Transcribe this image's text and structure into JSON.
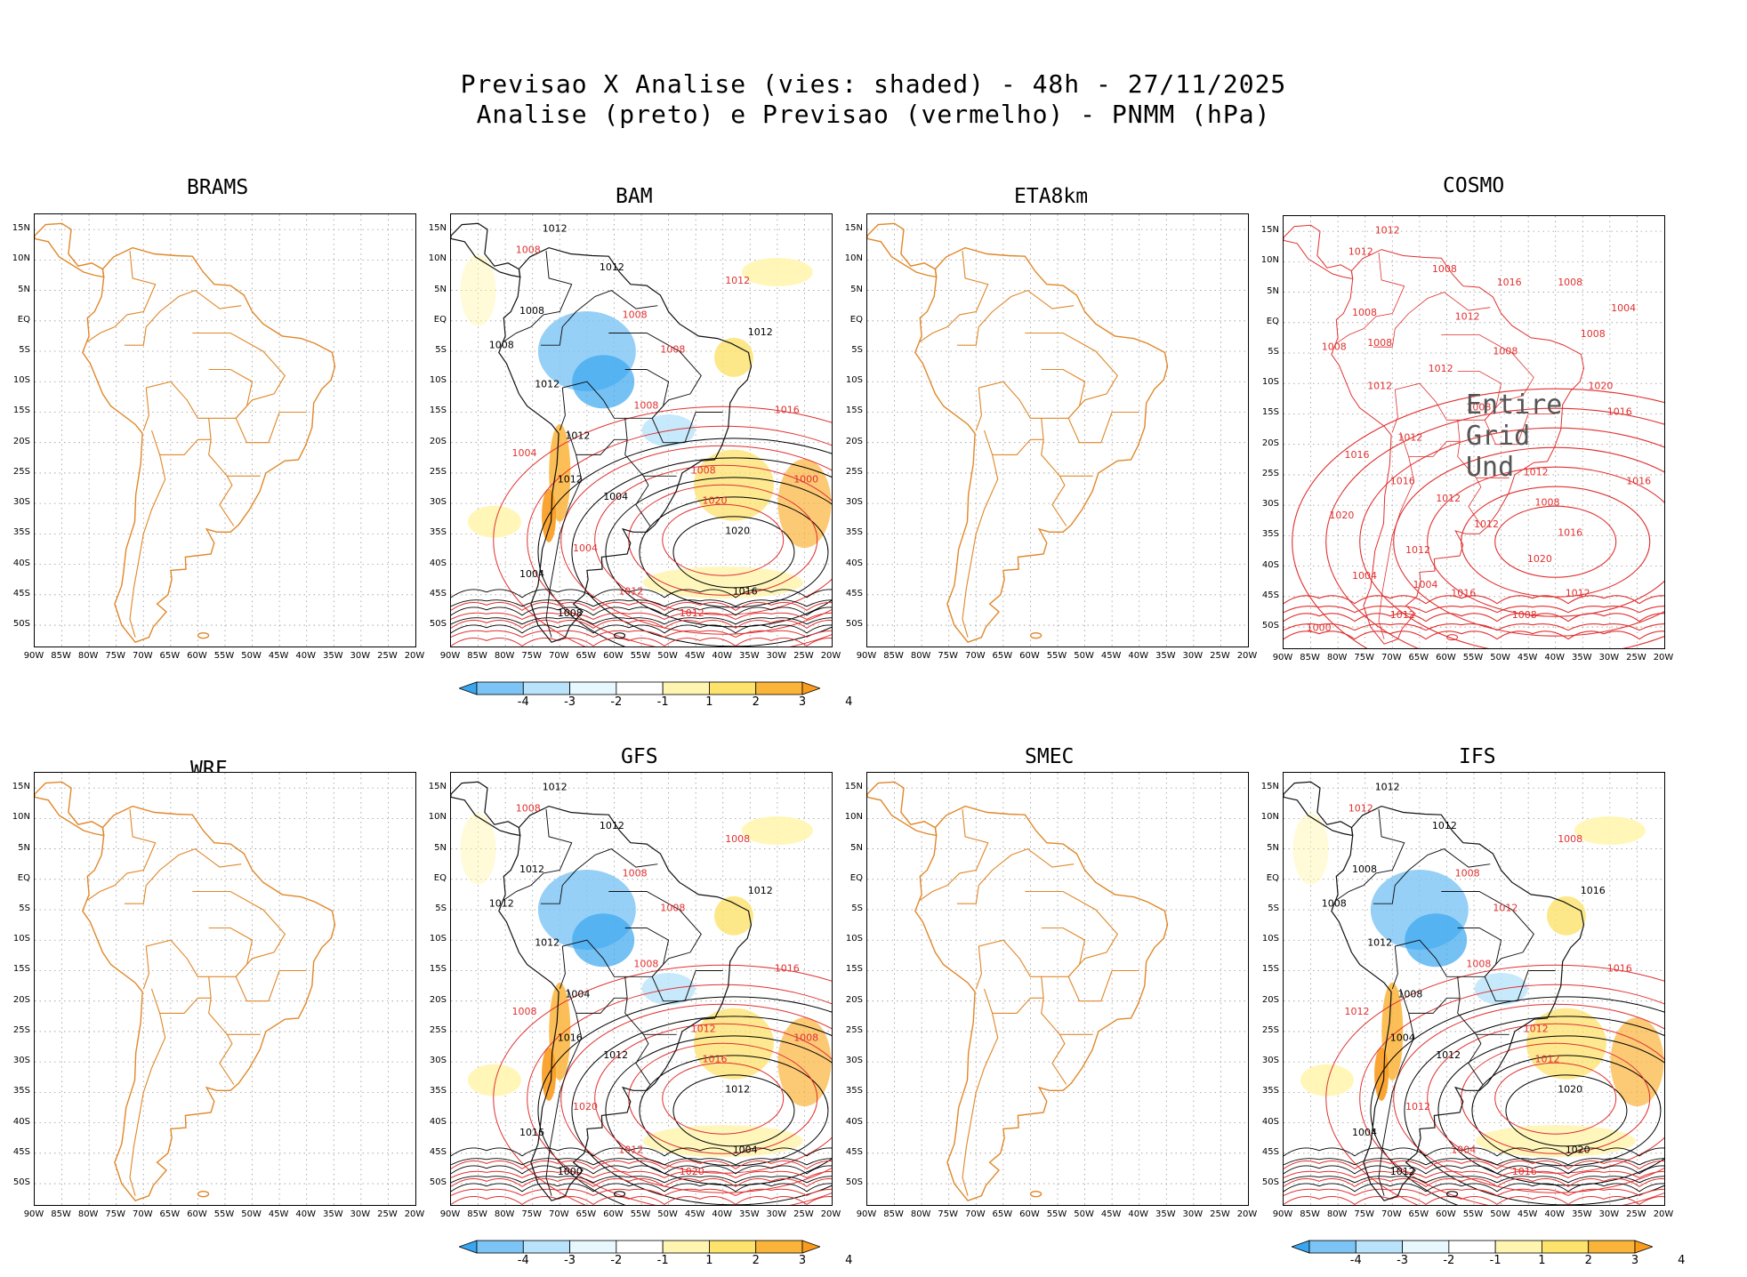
{
  "header": {
    "line1": "Previsao X Analise (vies: shaded) - 48h - 27/11/2025",
    "line2": "Analise (preto) e Previsao (vermelho) - PNMM (hPa)"
  },
  "lat_labels": [
    "15N",
    "10N",
    "5N",
    "EQ",
    "5S",
    "10S",
    "15S",
    "20S",
    "25S",
    "30S",
    "35S",
    "40S",
    "45S",
    "50S"
  ],
  "lon_labels": [
    "90W",
    "85W",
    "80W",
    "75W",
    "70W",
    "65W",
    "60W",
    "55W",
    "50W",
    "45W",
    "40W",
    "35W",
    "30W",
    "25W",
    "20W"
  ],
  "colorbar": {
    "labels": [
      "-4",
      "-3",
      "-2",
      "-1",
      "1",
      "2",
      "3",
      "4"
    ],
    "colors": [
      "#3aa6f0",
      "#7cc4f5",
      "#b9e3fb",
      "#e6f7fd",
      "#ffffff",
      "#fff5b0",
      "#fde26b",
      "#fbb43a",
      "#f99b1d"
    ]
  },
  "colors": {
    "coast": "#e0882a",
    "analysis": "#000000",
    "forecast": "#e03030",
    "grid": "#999999"
  },
  "panels": [
    {
      "id": "brams",
      "title": "BRAMS",
      "type": "empty"
    },
    {
      "id": "bam",
      "title": "BAM",
      "type": "bias",
      "contours": [
        "1012",
        "1008",
        "1012",
        "1012",
        "1008",
        "1008",
        "1008",
        "1008",
        "1012",
        "1016",
        "1012",
        "1008",
        "1012",
        "1004",
        "1012",
        "1008",
        "1004",
        "1020",
        "1020",
        "1004",
        "1016",
        "1012",
        "1004",
        "1012",
        "1008",
        "1000"
      ]
    },
    {
      "id": "eta8km",
      "title": "ETA8km",
      "type": "empty"
    },
    {
      "id": "cosmo",
      "title": "COSMO",
      "type": "forecast",
      "overlay": "Entire Grid Und",
      "contours": [
        "1012",
        "1012",
        "1008",
        "1008",
        "1008",
        "1012",
        "1008",
        "1008",
        "1008",
        "1016",
        "1012",
        "1008",
        "1012",
        "1016",
        "1016",
        "1012",
        "1012",
        "1008",
        "1016",
        "1012",
        "1012",
        "1008",
        "1004",
        "1016",
        "1012",
        "1016",
        "1020",
        "1012",
        "1016",
        "1004",
        "1020",
        "1000",
        "1012",
        "1008",
        "1004",
        "1020"
      ]
    },
    {
      "id": "wrf",
      "title": "WRF",
      "type": "empty"
    },
    {
      "id": "gfs",
      "title": "GFS",
      "type": "bias",
      "contours": [
        "1012",
        "1008",
        "1012",
        "1008",
        "1012",
        "1008",
        "1012",
        "1008",
        "1012",
        "1016",
        "1012",
        "1008",
        "1004",
        "1008",
        "1016",
        "1012",
        "1012",
        "1016",
        "1012",
        "1020",
        "1004",
        "1020",
        "1016",
        "1012",
        "1000",
        "1008"
      ]
    },
    {
      "id": "smec",
      "title": "SMEC",
      "type": "empty"
    },
    {
      "id": "ifs",
      "title": "IFS",
      "type": "bias",
      "contours": [
        "1012",
        "1012",
        "1012",
        "1008",
        "1008",
        "1008",
        "1008",
        "1012",
        "1016",
        "1016",
        "1012",
        "1008",
        "1008",
        "1012",
        "1004",
        "1012",
        "1012",
        "1012",
        "1020",
        "1012",
        "1020",
        "1016",
        "1004",
        "1004",
        "1012"
      ]
    }
  ]
}
